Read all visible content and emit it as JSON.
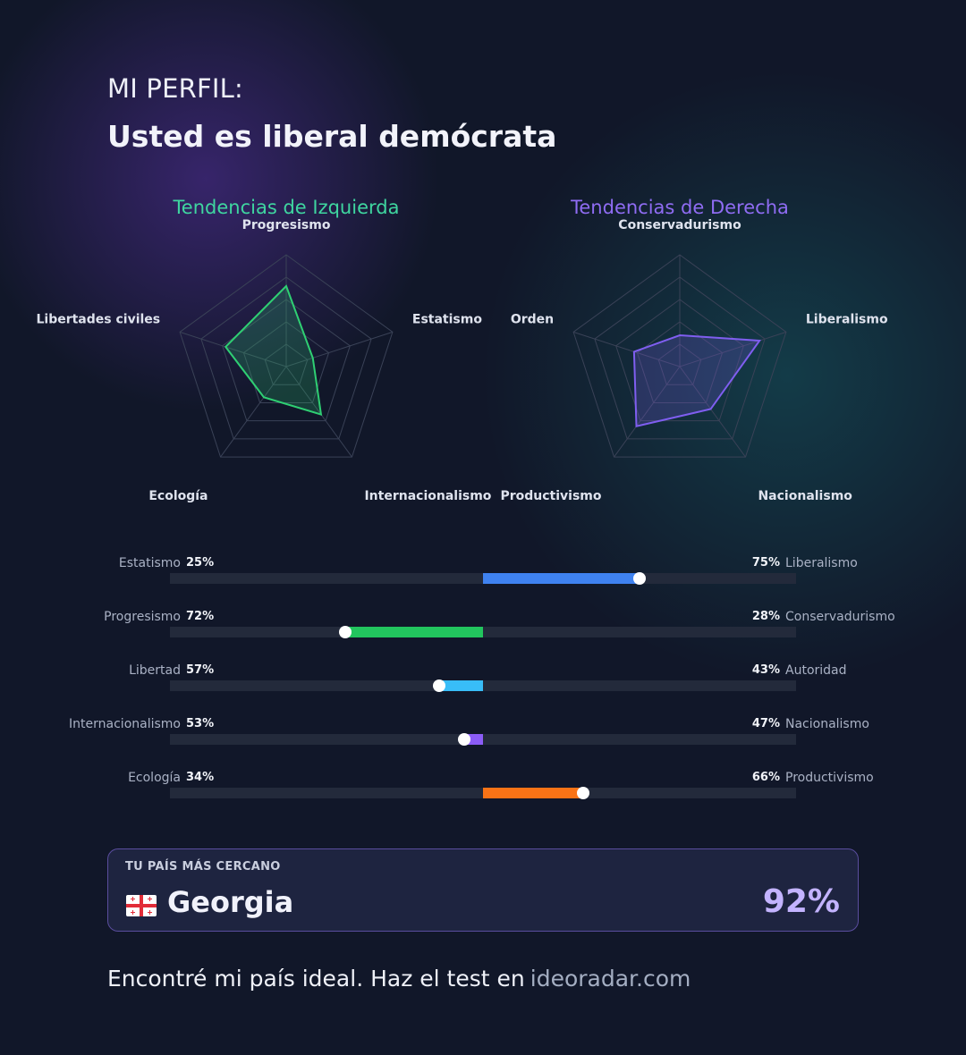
{
  "profile": {
    "eyebrow": "MI PERFIL:",
    "headline": "Usted es liberal demócrata"
  },
  "colors": {
    "left_accent": "#3fd6a0",
    "right_accent": "#8f6cf3",
    "background": "#111729"
  },
  "radars": [
    {
      "title": "Tendencias de Izquierda",
      "color": "#2fcf73",
      "axes": [
        "Progresismo",
        "Estatismo",
        "Internacionalismo",
        "Ecología",
        "Libertades civiles"
      ],
      "values": [
        72,
        25,
        53,
        34,
        57
      ]
    },
    {
      "title": "Tendencias de Derecha",
      "color": "#7f5ef0",
      "axes": [
        "Conservadurismo",
        "Liberalismo",
        "Nacionalismo",
        "Productivismo",
        "Orden"
      ],
      "values": [
        28,
        75,
        47,
        66,
        43
      ]
    }
  ],
  "scales": [
    {
      "left_label": "Estatismo",
      "left_pct": "25%",
      "right_label": "Liberalismo",
      "right_pct": "75%",
      "value": 75,
      "color": "#3f82f0"
    },
    {
      "left_label": "Progresismo",
      "left_pct": "72%",
      "right_label": "Conservadurismo",
      "right_pct": "28%",
      "value": 28,
      "color": "#22c55e"
    },
    {
      "left_label": "Libertad",
      "left_pct": "57%",
      "right_label": "Autoridad",
      "right_pct": "43%",
      "value": 43,
      "color": "#38bdf8"
    },
    {
      "left_label": "Internacionalismo",
      "left_pct": "53%",
      "right_label": "Nacionalismo",
      "right_pct": "47%",
      "value": 47,
      "color": "#8b5cf6"
    },
    {
      "left_label": "Ecología",
      "left_pct": "34%",
      "right_label": "Productivismo",
      "right_pct": "66%",
      "value": 66,
      "color": "#f97316"
    }
  ],
  "closest_country": {
    "label": "TU PAÍS MÁS CERCANO",
    "flag_icon": "georgia-flag-icon",
    "name": "Georgia",
    "match": "92%"
  },
  "footer": {
    "text": "Encontré mi país ideal. Haz el test en",
    "link": "ideoradar.com"
  }
}
